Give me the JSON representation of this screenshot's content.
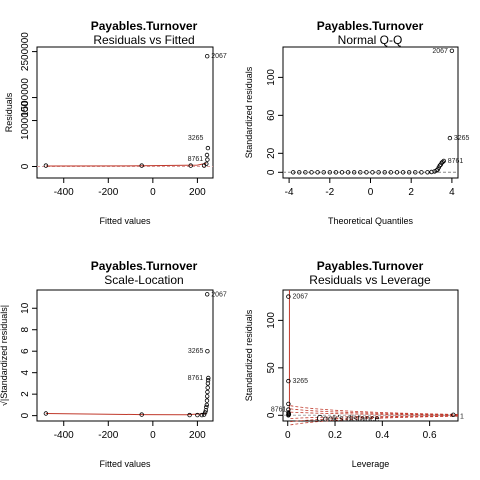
{
  "chart_data": [
    {
      "id": "rvf",
      "type": "scatter",
      "title": "Payables.Turnover",
      "subtitle": "Residuals vs Fitted",
      "xlabel": "Fitted values",
      "ylabel": "Residuals",
      "xlim": [
        -520,
        270
      ],
      "ylim": [
        -250000,
        2600000
      ],
      "xticks": [
        -400,
        -200,
        0,
        200
      ],
      "yticks": [
        0,
        1000000,
        1500000,
        2500000
      ],
      "ytick_labels": [
        "0",
        "1000000",
        "1500000",
        "2500000"
      ],
      "ref_line": {
        "type": "hline",
        "y": 0,
        "color": "#d9a0a0",
        "dashed": true
      },
      "smooth": [
        [
          -480,
          10000
        ],
        [
          -50,
          15000
        ],
        [
          200,
          30000
        ],
        [
          240,
          70000
        ]
      ],
      "points": [
        [
          -480,
          20000
        ],
        [
          -50,
          20000
        ],
        [
          170,
          20000
        ],
        [
          230,
          20000
        ],
        [
          240,
          60000
        ],
        [
          245,
          150000
        ],
        [
          243,
          250000
        ],
        [
          247,
          400000
        ],
        [
          244,
          2400000
        ]
      ],
      "labels": [
        {
          "text": "2067",
          "x": 244,
          "y": 2400000
        },
        {
          "text": "3265",
          "x": 245,
          "y": 620000
        },
        {
          "text": "8761",
          "x": 244,
          "y": 160000
        }
      ]
    },
    {
      "id": "qq",
      "type": "scatter",
      "title": "Payables.Turnover",
      "subtitle": "Normal Q-Q",
      "xlabel": "Theoretical Quantiles",
      "ylabel": "Standardized residuals",
      "xlim": [
        -4.3,
        4.3
      ],
      "ylim": [
        -6,
        132
      ],
      "xticks": [
        -4,
        -2,
        0,
        2,
        4
      ],
      "yticks": [
        0,
        20,
        60,
        100
      ],
      "ref_line": {
        "type": "hline",
        "y": 0,
        "color": "#888888",
        "dashed": true
      },
      "points": [
        [
          -3.8,
          0
        ],
        [
          -3.5,
          0
        ],
        [
          -3.2,
          0
        ],
        [
          -2.9,
          0
        ],
        [
          -2.6,
          0
        ],
        [
          -2.3,
          0
        ],
        [
          -2.0,
          0
        ],
        [
          -1.7,
          0
        ],
        [
          -1.4,
          0
        ],
        [
          -1.1,
          0
        ],
        [
          -0.8,
          0
        ],
        [
          -0.5,
          0
        ],
        [
          -0.2,
          0
        ],
        [
          0.1,
          0
        ],
        [
          0.4,
          0
        ],
        [
          0.7,
          0
        ],
        [
          1.0,
          0
        ],
        [
          1.3,
          0
        ],
        [
          1.6,
          0
        ],
        [
          1.9,
          0
        ],
        [
          2.2,
          0
        ],
        [
          2.5,
          0
        ],
        [
          2.8,
          0
        ],
        [
          3.0,
          0.3
        ],
        [
          3.15,
          1
        ],
        [
          3.25,
          2
        ],
        [
          3.3,
          3
        ],
        [
          3.35,
          5
        ],
        [
          3.4,
          7
        ],
        [
          3.45,
          8
        ],
        [
          3.5,
          10
        ],
        [
          3.55,
          11
        ],
        [
          3.6,
          12
        ],
        [
          3.9,
          36
        ],
        [
          4.0,
          128
        ]
      ],
      "labels": [
        {
          "text": "2067",
          "x": 4.0,
          "y": 128
        },
        {
          "text": "3265",
          "x": 3.9,
          "y": 36
        },
        {
          "text": "8761",
          "x": 3.6,
          "y": 12
        }
      ]
    },
    {
      "id": "sl",
      "type": "scatter",
      "title": "Payables.Turnover",
      "subtitle": "Scale-Location",
      "xlabel": "Fitted values",
      "ylabel": "√|Standardized residuals|",
      "xlim": [
        -520,
        270
      ],
      "ylim": [
        -0.5,
        11.7
      ],
      "xticks": [
        -400,
        -200,
        0,
        200
      ],
      "yticks": [
        0,
        2,
        4,
        6,
        8,
        10
      ],
      "smooth": [
        [
          -480,
          0.2
        ],
        [
          -50,
          0.1
        ],
        [
          150,
          0.08
        ],
        [
          240,
          0.2
        ]
      ],
      "points": [
        [
          -480,
          0.2
        ],
        [
          -50,
          0.1
        ],
        [
          165,
          0.05
        ],
        [
          200,
          0.05
        ],
        [
          220,
          0.05
        ],
        [
          230,
          0.1
        ],
        [
          235,
          0.3
        ],
        [
          238,
          0.5
        ],
        [
          240,
          0.8
        ],
        [
          242,
          1.0
        ],
        [
          243,
          1.4
        ],
        [
          244,
          1.8
        ],
        [
          245,
          2.2
        ],
        [
          246,
          2.6
        ],
        [
          247,
          3.0
        ],
        [
          248,
          3.3
        ],
        [
          249,
          3.5
        ],
        [
          245,
          6.0
        ],
        [
          244,
          11.3
        ]
      ],
      "labels": [
        {
          "text": "2067",
          "x": 244,
          "y": 11.3
        },
        {
          "text": "3265",
          "x": 245,
          "y": 6.0
        },
        {
          "text": "8761",
          "x": 244,
          "y": 3.5
        }
      ]
    },
    {
      "id": "rvl",
      "type": "scatter",
      "title": "Payables.Turnover",
      "subtitle": "Residuals vs Leverage",
      "xlabel": "Leverage",
      "ylabel": "Standardized residuals",
      "xlim": [
        -0.02,
        0.72
      ],
      "ylim": [
        -6,
        132
      ],
      "xticks": [
        0.0,
        0.2,
        0.4,
        0.6
      ],
      "yticks": [
        0,
        50,
        100
      ],
      "ref_line": {
        "type": "hline",
        "y": 0,
        "color": "#aaaaaa",
        "dashed": true
      },
      "cooks_label": "Cook's distance",
      "cooks_side_label": "1",
      "points": [
        [
          0.003,
          125
        ],
        [
          0.003,
          36
        ],
        [
          0.003,
          12
        ],
        [
          0.003,
          6
        ],
        [
          0.003,
          3
        ],
        [
          0.003,
          1
        ],
        [
          0.003,
          0
        ],
        [
          0.004,
          2
        ],
        [
          0.005,
          1
        ],
        [
          0.7,
          0.5
        ]
      ],
      "labels": [
        {
          "text": "2067",
          "x": 0.003,
          "y": 125
        },
        {
          "text": "3265",
          "x": 0.003,
          "y": 36
        },
        {
          "text": "8761",
          "x": 0.003,
          "y": 6
        }
      ]
    }
  ]
}
